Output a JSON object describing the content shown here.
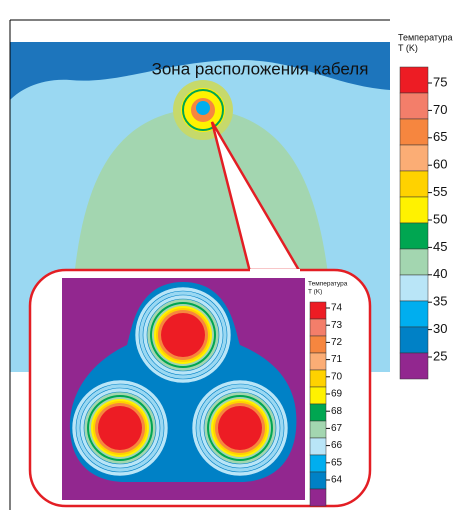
{
  "chart_data": [
    {
      "type": "heatmap",
      "title": "Зона расположения кабеля",
      "legend_title": [
        "Температура",
        "T (K)"
      ],
      "ticks": [
        75,
        70,
        65,
        60,
        55,
        50,
        45,
        40,
        35,
        30,
        25
      ],
      "colors": [
        "#ed1c24",
        "#f37e6a",
        "#f6863f",
        "#fbad75",
        "#ffd200",
        "#fff200",
        "#00a651",
        "#a3d6b0",
        "#b9e5f7",
        "#00aeef",
        "#0081c6",
        "#92278f"
      ]
    },
    {
      "type": "heatmap",
      "legend_title": [
        "Температура",
        "T (K)"
      ],
      "ticks": [
        74,
        73,
        72,
        71,
        70,
        69,
        68,
        67,
        66,
        65,
        64
      ],
      "colors": [
        "#ed1c24",
        "#f37e6a",
        "#f6863f",
        "#fbad75",
        "#ffd200",
        "#fff200",
        "#00a651",
        "#a3d6b0",
        "#b9e5f7",
        "#00aeef",
        "#0081c6",
        "#92278f"
      ]
    }
  ]
}
